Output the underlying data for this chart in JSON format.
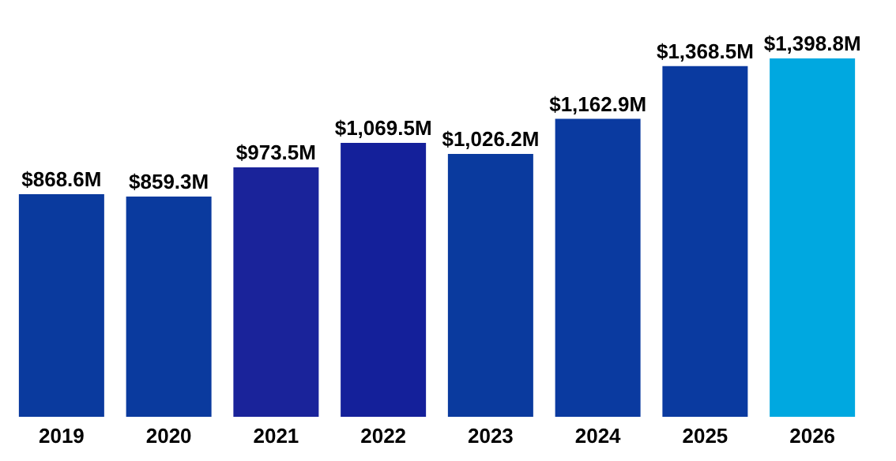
{
  "chart_data": {
    "type": "bar",
    "categories": [
      "2019",
      "2020",
      "2021",
      "2022",
      "2023",
      "2024",
      "2025",
      "2026"
    ],
    "values": [
      868.6,
      859.3,
      973.5,
      1069.5,
      1026.2,
      1162.9,
      1368.5,
      1398.8
    ],
    "value_labels": [
      "$868.6M",
      "$859.3M",
      "$973.5M",
      "$1,069.5M",
      "$1,026.2M",
      "$1,162.9M",
      "$1,368.5M",
      "$1,398.8M"
    ],
    "colors": [
      "#0a3a9e",
      "#0a3a9e",
      "#1a239a",
      "#14209a",
      "#0a3a9e",
      "#0a3aa0",
      "#0a3aa0",
      "#00a8e0"
    ]
  }
}
